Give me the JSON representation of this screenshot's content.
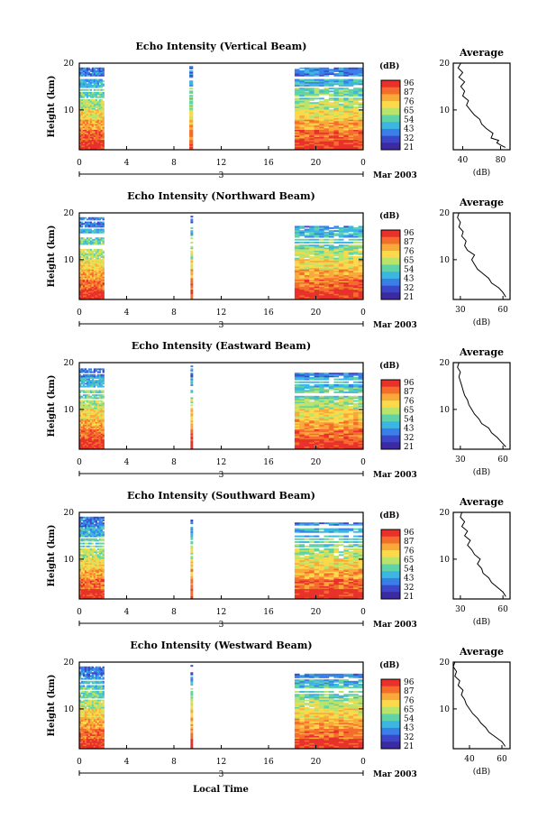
{
  "chart_data": {
    "type": "heatmap",
    "date_label": "Mar 2003",
    "day_label": "3",
    "xlabel_bottom": "Local Time",
    "x_ticks": [
      "0",
      "4",
      "8",
      "12",
      "16",
      "20",
      "0"
    ],
    "xlim": [
      0,
      24
    ],
    "ylabel": "Height (km)",
    "y_ticks": [
      "20",
      "10"
    ],
    "ylim": [
      1.5,
      20
    ],
    "colorbar": {
      "title": "(dB)",
      "ticks": [
        "96",
        "87",
        "76",
        "65",
        "54",
        "43",
        "32",
        "21"
      ],
      "colors": [
        "#e8312a",
        "#f46d2c",
        "#f9a83a",
        "#fbd94a",
        "#b9e36a",
        "#5fd3a6",
        "#3cb6e0",
        "#3a7fe8",
        "#3b47c8",
        "#3b2aa0"
      ]
    },
    "avg": {
      "title": "Average",
      "xlabel": "(dB)"
    },
    "panels": [
      {
        "title": "Echo Intensity (Vertical Beam)",
        "avg_ticks": [
          "40",
          "80"
        ],
        "xlim": [
          30,
          90
        ],
        "data_blocks": [
          [
            0,
            2.1
          ],
          [
            9.3,
            9.6
          ],
          [
            18.2,
            24
          ]
        ],
        "avg_profile": [
          [
            85,
            2
          ],
          [
            80,
            2.5
          ],
          [
            76,
            3
          ],
          [
            78,
            3.5
          ],
          [
            70,
            4
          ],
          [
            72,
            5
          ],
          [
            65,
            6
          ],
          [
            60,
            7
          ],
          [
            58,
            8
          ],
          [
            52,
            9
          ],
          [
            48,
            10
          ],
          [
            44,
            11
          ],
          [
            46,
            12
          ],
          [
            40,
            13
          ],
          [
            42,
            14
          ],
          [
            38,
            15
          ],
          [
            42,
            16
          ],
          [
            36,
            17
          ],
          [
            40,
            18
          ],
          [
            35,
            19
          ],
          [
            38,
            20
          ]
        ]
      },
      {
        "title": "Echo Intensity (Northward Beam)",
        "avg_ticks": [
          "30",
          "60"
        ],
        "xlim": [
          25,
          65
        ],
        "data_blocks": [
          [
            0,
            2.1
          ],
          [
            9.4,
            9.6
          ],
          [
            18.2,
            24
          ]
        ],
        "avg_profile": [
          [
            62,
            2
          ],
          [
            60,
            3
          ],
          [
            57,
            4
          ],
          [
            52,
            5
          ],
          [
            50,
            6
          ],
          [
            46,
            7
          ],
          [
            42,
            8
          ],
          [
            40,
            9
          ],
          [
            38,
            10
          ],
          [
            40,
            11
          ],
          [
            35,
            12
          ],
          [
            33,
            13
          ],
          [
            34,
            14
          ],
          [
            31,
            15
          ],
          [
            32,
            16
          ],
          [
            29,
            17
          ],
          [
            30,
            18
          ],
          [
            28,
            19
          ],
          [
            29,
            20
          ]
        ]
      },
      {
        "title": "Echo Intensity (Eastward Beam)",
        "avg_ticks": [
          "30",
          "60"
        ],
        "xlim": [
          25,
          65
        ],
        "data_blocks": [
          [
            0,
            2.1
          ],
          [
            9.4,
            9.6
          ],
          [
            18.2,
            24
          ]
        ],
        "avg_profile": [
          [
            62,
            2
          ],
          [
            59,
            3
          ],
          [
            56,
            4
          ],
          [
            52,
            5
          ],
          [
            50,
            6
          ],
          [
            45,
            7
          ],
          [
            43,
            8
          ],
          [
            40,
            9
          ],
          [
            38,
            10
          ],
          [
            36,
            11
          ],
          [
            35,
            12
          ],
          [
            33,
            13
          ],
          [
            32,
            14
          ],
          [
            31,
            15
          ],
          [
            30,
            16
          ],
          [
            29,
            17
          ],
          [
            30,
            18
          ],
          [
            28,
            19
          ],
          [
            29,
            20
          ]
        ]
      },
      {
        "title": "Echo Intensity (Southward Beam)",
        "avg_ticks": [
          "30",
          "60"
        ],
        "xlim": [
          25,
          65
        ],
        "data_blocks": [
          [
            0,
            2.1
          ],
          [
            9.4,
            9.6
          ],
          [
            18.2,
            24
          ]
        ],
        "avg_profile": [
          [
            62,
            2
          ],
          [
            60,
            3
          ],
          [
            56,
            4
          ],
          [
            52,
            5
          ],
          [
            50,
            6
          ],
          [
            46,
            7
          ],
          [
            45,
            8
          ],
          [
            42,
            9
          ],
          [
            44,
            10
          ],
          [
            40,
            11
          ],
          [
            38,
            12
          ],
          [
            35,
            13
          ],
          [
            37,
            14
          ],
          [
            33,
            15
          ],
          [
            35,
            16
          ],
          [
            31,
            17
          ],
          [
            33,
            18
          ],
          [
            30,
            19
          ],
          [
            31,
            20
          ]
        ]
      },
      {
        "title": "Echo Intensity (Westward Beam)",
        "avg_ticks": [
          "40",
          "60"
        ],
        "xlim": [
          30,
          65
        ],
        "data_blocks": [
          [
            0,
            2.1
          ],
          [
            9.4,
            9.6
          ],
          [
            18.2,
            24
          ]
        ],
        "avg_profile": [
          [
            62,
            2
          ],
          [
            60,
            3
          ],
          [
            56,
            4
          ],
          [
            52,
            5
          ],
          [
            50,
            6
          ],
          [
            47,
            7
          ],
          [
            45,
            8
          ],
          [
            42,
            9
          ],
          [
            40,
            10
          ],
          [
            38,
            11
          ],
          [
            37,
            12
          ],
          [
            35,
            13
          ],
          [
            36,
            14
          ],
          [
            33,
            15
          ],
          [
            34,
            16
          ],
          [
            31,
            17
          ],
          [
            32,
            18
          ],
          [
            30,
            19
          ],
          [
            31,
            20
          ]
        ]
      }
    ]
  }
}
